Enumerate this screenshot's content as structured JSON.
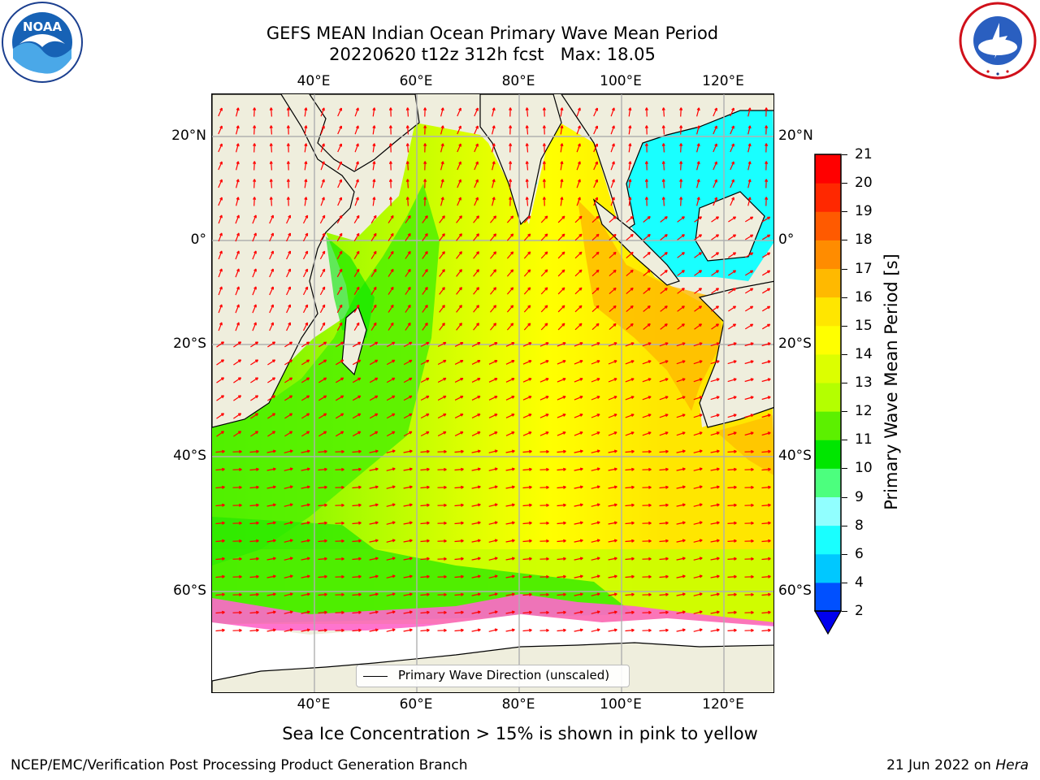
{
  "header": {
    "title_line1": "GEFS MEAN Indian Ocean Primary Wave Mean Period",
    "title_line2": "20220620 t12z 312h fcst   Max: 18.05"
  },
  "logos": {
    "noaa": {
      "text": "NOAA",
      "ring_text": "NATIONAL OCEANIC AND ATMOSPHERIC ADMINISTRATION · U.S. DEPARTMENT OF COMMERCE"
    },
    "nws": {
      "ring_text": "NATIONAL WEATHER SERVICE"
    }
  },
  "map": {
    "lon_ticks": [
      "40°E",
      "60°E",
      "80°E",
      "100°E",
      "120°E"
    ],
    "lat_ticks": [
      "20°N",
      "0°",
      "20°S",
      "40°S",
      "60°S"
    ],
    "lon_values": [
      40,
      60,
      80,
      100,
      120
    ],
    "lat_values": [
      20,
      0,
      -20,
      -40,
      -60
    ],
    "extent": {
      "lon": [
        20,
        130
      ],
      "lat": [
        -74,
        28
      ]
    },
    "grid": true,
    "land_color": "#efeedd",
    "vector_color": "#ff0000"
  },
  "legend": {
    "label": "Primary Wave Direction (unscaled)"
  },
  "colorbar": {
    "label": "Primary Wave Mean Period [s]",
    "ticks": [
      "2",
      "4",
      "6",
      "8",
      "9",
      "10",
      "11",
      "12",
      "13",
      "14",
      "15",
      "16",
      "17",
      "18",
      "19",
      "20",
      "21"
    ],
    "colors": [
      "#0050ff",
      "#00c8ff",
      "#19ffff",
      "#91ffff",
      "#4cff7e",
      "#00e600",
      "#5cf000",
      "#b4ff00",
      "#dcff00",
      "#ffff00",
      "#ffe600",
      "#ffb900",
      "#ff8c00",
      "#ff5a00",
      "#ff2800",
      "#ff0000"
    ],
    "extend_color": "#0000ee"
  },
  "footer": {
    "ice_note": "Sea Ice Concentration > 15% is shown in pink to yellow",
    "credit": "NCEP/EMC/Verification Post Processing Product Generation Branch",
    "date": "21 Jun 2022 on ",
    "host": "Hera"
  }
}
